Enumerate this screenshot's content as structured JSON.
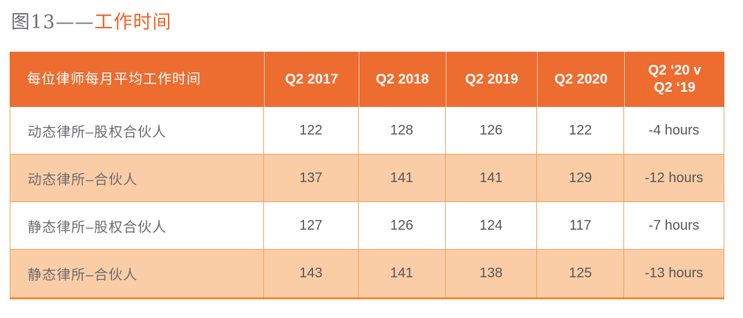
{
  "title": {
    "prefix": "图13——",
    "highlight": "工作时间"
  },
  "colors": {
    "header_bg": "#ED6C2F",
    "row_tint_bg": "#FBCDA6",
    "row_white_bg": "#FFFFFF",
    "inner_border": "#F2A159",
    "bottom_border": "#EE8C35",
    "header_text": "#FFFFFF",
    "body_text": "#55565A",
    "title_gray": "#6E6F72",
    "title_orange": "#F2632A"
  },
  "table": {
    "header": {
      "label": "每位律师每月平均工作时间",
      "q2_2017": "Q2 2017",
      "q2_2018": "Q2 2018",
      "q2_2019": "Q2 2019",
      "q2_2020": "Q2 2020",
      "compare": "Q2 ‘20 v\nQ2 ‘19"
    },
    "rows": [
      {
        "label": "动态律所–股权合伙人",
        "values": [
          "122",
          "128",
          "126",
          "122",
          "-4 hours"
        ]
      },
      {
        "label": "动态律所–合伙人",
        "values": [
          "137",
          "141",
          "141",
          "129",
          "-12 hours"
        ]
      },
      {
        "label": "静态律所–股权合伙人",
        "values": [
          "127",
          "126",
          "124",
          "117",
          "-7 hours"
        ]
      },
      {
        "label": "静态律所–合伙人",
        "values": [
          "143",
          "141",
          "138",
          "125",
          "-13 hours"
        ]
      }
    ]
  }
}
